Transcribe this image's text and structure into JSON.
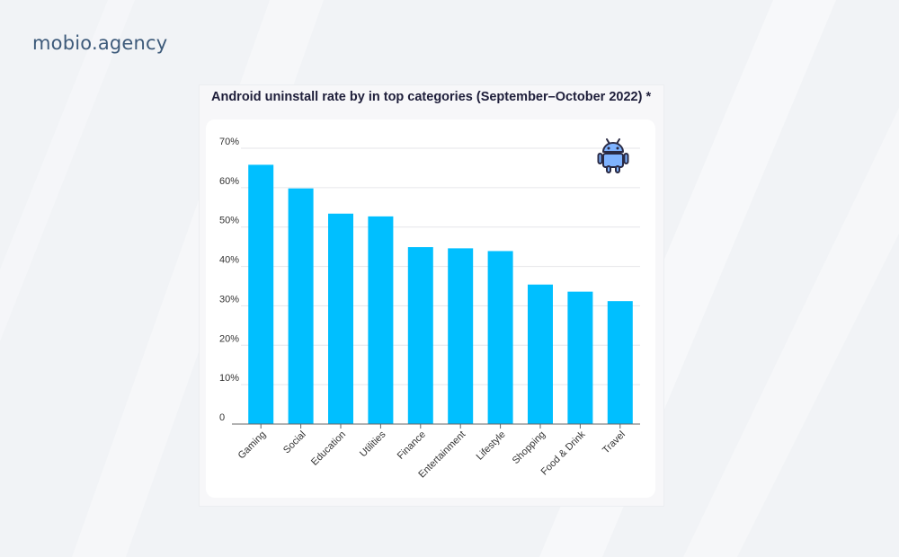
{
  "brand": {
    "name": "mobio.agency"
  },
  "colors": {
    "bar": "#00bfff",
    "background": "#f1f3f6",
    "title": "#1e1e3a",
    "brand": "#3d5a7a"
  },
  "icons": {
    "platform": "android-icon"
  },
  "chart_data": {
    "type": "bar",
    "title": "Android uninstall rate by in top categories (September–October 2022) *",
    "xlabel": "",
    "ylabel": "",
    "ylim": [
      0,
      70
    ],
    "yticks": [
      {
        "value": 0,
        "label": "0"
      },
      {
        "value": 10,
        "label": "10%"
      },
      {
        "value": 20,
        "label": "20%"
      },
      {
        "value": 30,
        "label": "30%"
      },
      {
        "value": 40,
        "label": "40%"
      },
      {
        "value": 50,
        "label": "50%"
      },
      {
        "value": 60,
        "label": "60%"
      },
      {
        "value": 70,
        "label": "70%"
      }
    ],
    "grid": true,
    "categories": [
      "Gaming",
      "Social",
      "Education",
      "Utilities",
      "Finance",
      "Entertainment",
      "Lifestyle",
      "Shopping",
      "Food & Drink",
      "Travel"
    ],
    "values": [
      65.8,
      59.8,
      53.4,
      52.7,
      44.9,
      44.6,
      43.9,
      35.4,
      33.6,
      31.2
    ]
  }
}
